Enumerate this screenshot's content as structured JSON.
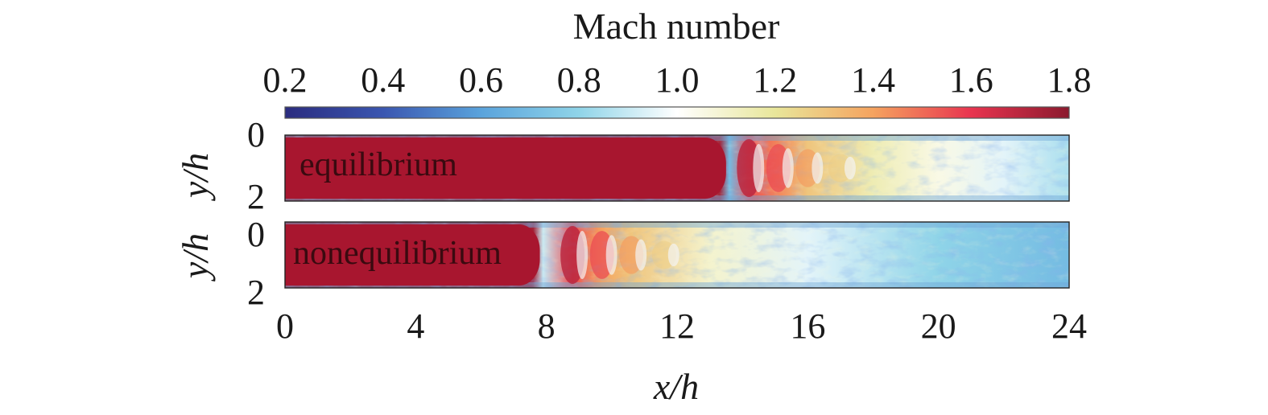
{
  "chart_data": [
    {
      "type": "heatmap",
      "title": "",
      "colorbar": {
        "label": "Mach number",
        "ticks": [
          "0.2",
          "0.4",
          "0.6",
          "0.8",
          "1.0",
          "1.2",
          "1.4",
          "1.6",
          "1.8"
        ],
        "range": [
          0.2,
          1.8
        ],
        "colormap": [
          "#2b2c7f",
          "#3a56b0",
          "#5aa3dc",
          "#8fd4e8",
          "#ffffff",
          "#e8e69a",
          "#f5a35f",
          "#e8344f",
          "#8b1a2e"
        ]
      },
      "x_ticks": [
        "0",
        "4",
        "8",
        "12",
        "16",
        "20",
        "24"
      ],
      "xlabel": "x/h",
      "xlim": [
        0,
        24
      ],
      "panels": [
        {
          "label": "equilibrium",
          "ylabel": "y/h",
          "y_ticks": [
            "0",
            "2"
          ],
          "ylim": [
            0,
            2
          ],
          "supersonic_core_end_x": 13.5,
          "shock_cell_centers_x": [
            14.2,
            15.1,
            16.0,
            17.0
          ],
          "mach_profile": {
            "x": [
              0,
              13.3,
              13.6,
              14.2,
              15.1,
              16.0,
              18.0,
              20.0,
              22.0,
              24.0
            ],
            "mach": [
              1.75,
              1.75,
              0.7,
              1.55,
              1.45,
              1.3,
              1.15,
              1.05,
              0.95,
              0.85
            ]
          }
        },
        {
          "label": "nonequilibrium",
          "ylabel": "y/h",
          "y_ticks": [
            "0",
            "2"
          ],
          "ylim": [
            0,
            2
          ],
          "supersonic_core_end_x": 7.8,
          "shock_cell_centers_x": [
            8.8,
            9.7,
            10.6,
            11.6
          ],
          "mach_profile": {
            "x": [
              0,
              7.6,
              7.9,
              8.8,
              9.7,
              10.6,
              13.0,
              16.0,
              20.0,
              24.0
            ],
            "mach": [
              1.75,
              1.75,
              0.9,
              1.55,
              1.4,
              1.3,
              1.1,
              0.95,
              0.8,
              0.7
            ]
          }
        }
      ]
    }
  ]
}
